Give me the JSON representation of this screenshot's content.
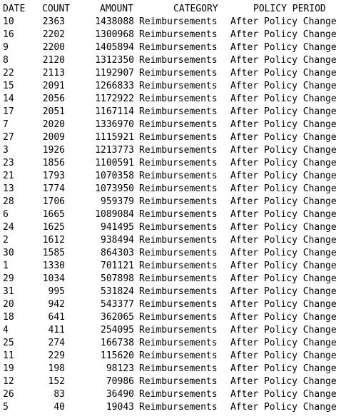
{
  "headers": {
    "date": "DATE",
    "count": "COUNT",
    "amount": "AMOUNT",
    "category": "CATEGORY",
    "policy_period": "POLICY PERIOD"
  },
  "rows": [
    {
      "date": "10",
      "count": "2363",
      "amount": "1438088",
      "category": "Reimbursements",
      "policy_period": "After Policy Change"
    },
    {
      "date": "16",
      "count": "2202",
      "amount": "1300968",
      "category": "Reimbursements",
      "policy_period": "After Policy Change"
    },
    {
      "date": "9",
      "count": "2200",
      "amount": "1405894",
      "category": "Reimbursements",
      "policy_period": "After Policy Change"
    },
    {
      "date": "8",
      "count": "2120",
      "amount": "1312350",
      "category": "Reimbursements",
      "policy_period": "After Policy Change"
    },
    {
      "date": "22",
      "count": "2113",
      "amount": "1192907",
      "category": "Reimbursements",
      "policy_period": "After Policy Change"
    },
    {
      "date": "15",
      "count": "2091",
      "amount": "1266833",
      "category": "Reimbursements",
      "policy_period": "After Policy Change"
    },
    {
      "date": "14",
      "count": "2056",
      "amount": "1172922",
      "category": "Reimbursements",
      "policy_period": "After Policy Change"
    },
    {
      "date": "17",
      "count": "2051",
      "amount": "1167114",
      "category": "Reimbursements",
      "policy_period": "After Policy Change"
    },
    {
      "date": "7",
      "count": "2020",
      "amount": "1336970",
      "category": "Reimbursements",
      "policy_period": "After Policy Change"
    },
    {
      "date": "27",
      "count": "2009",
      "amount": "1115921",
      "category": "Reimbursements",
      "policy_period": "After Policy Change"
    },
    {
      "date": "3",
      "count": "1926",
      "amount": "1213773",
      "category": "Reimbursements",
      "policy_period": "After Policy Change"
    },
    {
      "date": "23",
      "count": "1856",
      "amount": "1100591",
      "category": "Reimbursements",
      "policy_period": "After Policy Change"
    },
    {
      "date": "21",
      "count": "1793",
      "amount": "1070358",
      "category": "Reimbursements",
      "policy_period": "After Policy Change"
    },
    {
      "date": "13",
      "count": "1774",
      "amount": "1073950",
      "category": "Reimbursements",
      "policy_period": "After Policy Change"
    },
    {
      "date": "28",
      "count": "1706",
      "amount": "959379",
      "category": "Reimbursements",
      "policy_period": "After Policy Change"
    },
    {
      "date": "6",
      "count": "1665",
      "amount": "1089084",
      "category": "Reimbursements",
      "policy_period": "After Policy Change"
    },
    {
      "date": "24",
      "count": "1625",
      "amount": "941495",
      "category": "Reimbursements",
      "policy_period": "After Policy Change"
    },
    {
      "date": "2",
      "count": "1612",
      "amount": "938494",
      "category": "Reimbursements",
      "policy_period": "After Policy Change"
    },
    {
      "date": "30",
      "count": "1585",
      "amount": "864303",
      "category": "Reimbursements",
      "policy_period": "After Policy Change"
    },
    {
      "date": "1",
      "count": "1330",
      "amount": "701121",
      "category": "Reimbursements",
      "policy_period": "After Policy Change"
    },
    {
      "date": "29",
      "count": "1034",
      "amount": "507898",
      "category": "Reimbursements",
      "policy_period": "After Policy Change"
    },
    {
      "date": "31",
      "count": "995",
      "amount": "531824",
      "category": "Reimbursements",
      "policy_period": "After Policy Change"
    },
    {
      "date": "20",
      "count": "942",
      "amount": "543377",
      "category": "Reimbursements",
      "policy_period": "After Policy Change"
    },
    {
      "date": "18",
      "count": "641",
      "amount": "362065",
      "category": "Reimbursements",
      "policy_period": "After Policy Change"
    },
    {
      "date": "4",
      "count": "411",
      "amount": "254095",
      "category": "Reimbursements",
      "policy_period": "After Policy Change"
    },
    {
      "date": "25",
      "count": "274",
      "amount": "166738",
      "category": "Reimbursements",
      "policy_period": "After Policy Change"
    },
    {
      "date": "11",
      "count": "229",
      "amount": "115620",
      "category": "Reimbursements",
      "policy_period": "After Policy Change"
    },
    {
      "date": "19",
      "count": "198",
      "amount": "98123",
      "category": "Reimbursements",
      "policy_period": "After Policy Change"
    },
    {
      "date": "12",
      "count": "152",
      "amount": "70986",
      "category": "Reimbursements",
      "policy_period": "After Policy Change"
    },
    {
      "date": "26",
      "count": "83",
      "amount": "36490",
      "category": "Reimbursements",
      "policy_period": "After Policy Change"
    },
    {
      "date": "5",
      "count": "40",
      "amount": "19043",
      "category": "Reimbursements",
      "policy_period": "After Policy Change"
    }
  ]
}
